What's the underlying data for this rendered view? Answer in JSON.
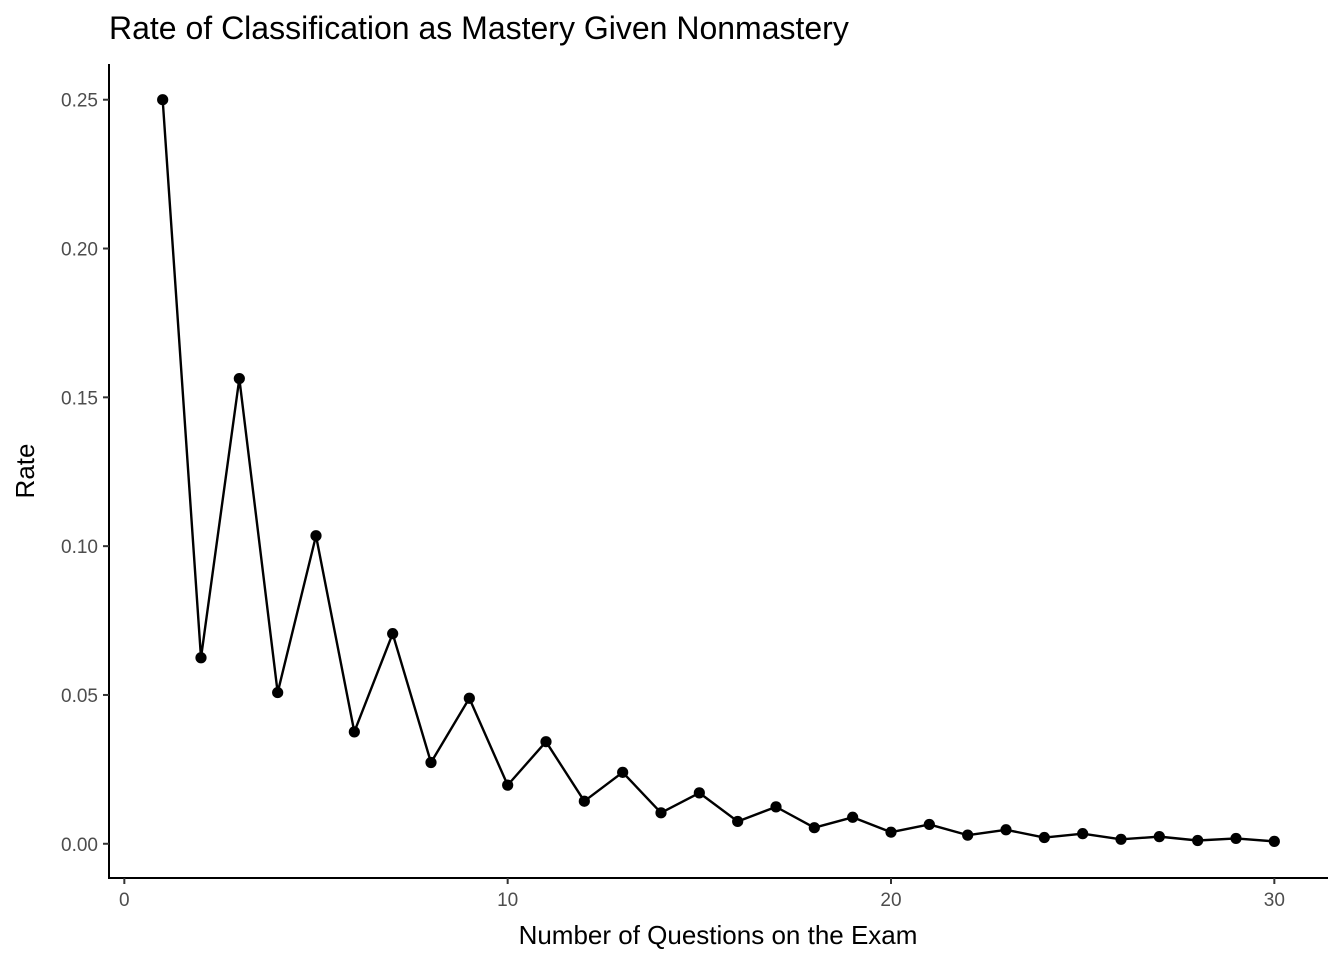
{
  "chart_data": {
    "type": "line",
    "title": "Rate of Classification as Mastery Given Nonmastery",
    "xlabel": "Number of Questions on the Exam",
    "ylabel": "Rate",
    "xlim": [
      -0.4,
      31.4
    ],
    "ylim": [
      -0.0115,
      0.262
    ],
    "xticks": [
      0,
      10,
      20,
      30
    ],
    "xtick_labels": [
      "0",
      "10",
      "20",
      "30"
    ],
    "yticks": [
      0,
      0.05,
      0.1,
      0.15,
      0.2,
      0.25
    ],
    "ytick_labels": [
      "0.00",
      "0.05",
      "0.10",
      "0.15",
      "0.20",
      "0.25"
    ],
    "grid": false,
    "legend": "none",
    "color": "#000000",
    "series": [
      {
        "x": [
          1,
          2,
          3,
          4,
          5,
          6,
          7,
          8,
          9,
          10,
          11,
          12,
          13,
          14,
          15,
          16,
          17,
          18,
          19,
          20,
          21,
          22,
          23,
          24,
          25,
          26,
          27,
          28,
          29,
          30
        ],
        "y": [
          0.25,
          0.0625,
          0.1563,
          0.0508,
          0.1035,
          0.0376,
          0.0706,
          0.0273,
          0.0489,
          0.0197,
          0.0343,
          0.0143,
          0.024,
          0.0104,
          0.0171,
          0.0075,
          0.0124,
          0.0054,
          0.0089,
          0.0039,
          0.0065,
          0.0029,
          0.0047,
          0.0021,
          0.0034,
          0.0015,
          0.0024,
          0.0011,
          0.0018,
          0.0008
        ]
      }
    ]
  }
}
